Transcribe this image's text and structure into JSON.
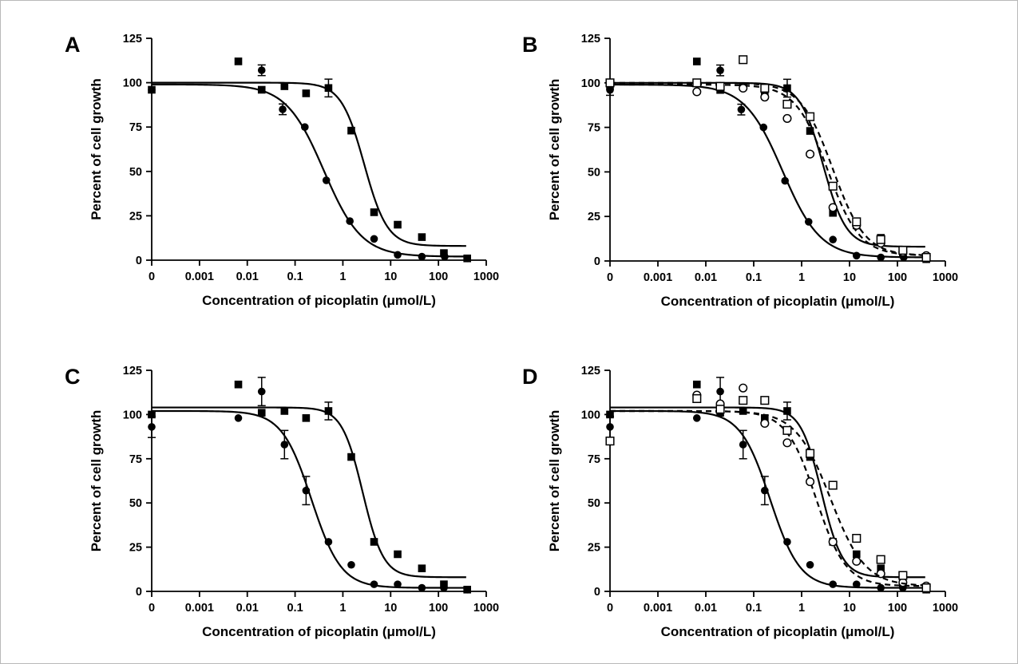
{
  "chart_data": [
    {
      "type": "scatter",
      "panel": "A",
      "xlabel": "Concentration of picoplatin (μmol/L)",
      "ylabel": "Percent of cell growth",
      "xscale": "log",
      "xlim": [
        0.0001,
        1000
      ],
      "ylim": [
        0,
        125
      ],
      "x_tick_labels": [
        "0",
        "0.001",
        "0.01",
        "0.1",
        "1",
        "10",
        "100",
        "1000"
      ],
      "y_tick_labels": [
        "0",
        "25",
        "50",
        "75",
        "100",
        "125"
      ],
      "grid": false,
      "legend": "none",
      "series": [
        {
          "marker": "filled-circle",
          "line": "solid",
          "x": [
            0.0001,
            0.02,
            0.055,
            0.16,
            0.45,
            1.4,
            4.5,
            14,
            45,
            135,
            400
          ],
          "y": [
            96,
            107,
            85,
            75,
            45,
            22,
            12,
            3,
            2,
            2,
            1
          ],
          "err": [
            0,
            3,
            3,
            0,
            0,
            0,
            0,
            0,
            0,
            0,
            0
          ],
          "fit": {
            "top": 99,
            "bottom": 2,
            "ec50": 0.4,
            "hill": 1.1
          }
        },
        {
          "marker": "filled-square",
          "line": "solid",
          "x": [
            0.0001,
            0.0065,
            0.02,
            0.06,
            0.17,
            0.5,
            1.5,
            4.5,
            14,
            45,
            130,
            400
          ],
          "y": [
            96,
            112,
            96,
            98,
            94,
            97,
            73,
            27,
            20,
            13,
            4,
            1
          ],
          "err": [
            0,
            0,
            0,
            0,
            0,
            5,
            0,
            0,
            0,
            0,
            0,
            0
          ],
          "fit": {
            "top": 100,
            "bottom": 8,
            "ec50": 2.8,
            "hill": 1.8
          }
        }
      ]
    },
    {
      "type": "scatter",
      "panel": "B",
      "xlabel": "Concentration of picoplatin (μmol/L)",
      "ylabel": "Percent of cell growth",
      "xscale": "log",
      "xlim": [
        0.0001,
        1000
      ],
      "ylim": [
        0,
        125
      ],
      "x_tick_labels": [
        "0",
        "0.001",
        "0.01",
        "0.1",
        "1",
        "10",
        "100",
        "1000"
      ],
      "y_tick_labels": [
        "0",
        "25",
        "50",
        "75",
        "100",
        "125"
      ],
      "grid": false,
      "legend": "none",
      "series": [
        {
          "marker": "filled-circle",
          "line": "solid",
          "x": [
            0.0001,
            0.02,
            0.055,
            0.16,
            0.45,
            1.4,
            4.5,
            14,
            45,
            135,
            400
          ],
          "y": [
            96,
            107,
            85,
            75,
            45,
            22,
            12,
            3,
            2,
            2,
            1
          ],
          "err": [
            3,
            3,
            3,
            0,
            0,
            0,
            0,
            0,
            0,
            0,
            0
          ],
          "fit": {
            "top": 99,
            "bottom": 2,
            "ec50": 0.4,
            "hill": 1.1
          }
        },
        {
          "marker": "filled-square",
          "line": "solid",
          "x": [
            0.0001,
            0.0065,
            0.02,
            0.06,
            0.17,
            0.5,
            1.5,
            4.5,
            14,
            45,
            130,
            400
          ],
          "y": [
            98,
            112,
            96,
            98,
            94,
            97,
            73,
            27,
            20,
            13,
            4,
            1
          ],
          "err": [
            0,
            0,
            0,
            0,
            0,
            5,
            0,
            0,
            0,
            0,
            0,
            0
          ],
          "fit": {
            "top": 100,
            "bottom": 8,
            "ec50": 2.8,
            "hill": 1.8
          }
        },
        {
          "marker": "open-circle",
          "line": "dashed",
          "x": [
            0.0001,
            0.0065,
            0.02,
            0.06,
            0.17,
            0.5,
            1.5,
            4.5,
            14,
            45,
            130,
            400
          ],
          "y": [
            100,
            95,
            98,
            97,
            92,
            80,
            60,
            30,
            20,
            10,
            5,
            3
          ],
          "err": [
            0,
            0,
            0,
            0,
            0,
            0,
            0,
            0,
            0,
            0,
            0,
            0
          ],
          "fit": {
            "top": 99,
            "bottom": 3,
            "ec50": 3.5,
            "hill": 1.3
          }
        },
        {
          "marker": "open-square",
          "line": "dashed",
          "x": [
            0.0001,
            0.0065,
            0.02,
            0.06,
            0.17,
            0.5,
            1.5,
            4.5,
            14,
            45,
            130,
            400
          ],
          "y": [
            100,
            100,
            98,
            113,
            97,
            88,
            81,
            42,
            22,
            12,
            6,
            2
          ],
          "err": [
            0,
            0,
            0,
            0,
            0,
            0,
            0,
            0,
            0,
            0,
            0,
            0
          ],
          "fit": {
            "top": 100,
            "bottom": 3,
            "ec50": 4.5,
            "hill": 1.3
          }
        }
      ]
    },
    {
      "type": "scatter",
      "panel": "C",
      "xlabel": "Concentration of picoplatin (μmol/L)",
      "ylabel": "Percent of cell growth",
      "xscale": "log",
      "xlim": [
        0.0001,
        1000
      ],
      "ylim": [
        0,
        125
      ],
      "x_tick_labels": [
        "0",
        "0.001",
        "0.01",
        "0.1",
        "1",
        "10",
        "100",
        "1000"
      ],
      "y_tick_labels": [
        "0",
        "25",
        "50",
        "75",
        "100",
        "125"
      ],
      "grid": false,
      "legend": "none",
      "series": [
        {
          "marker": "filled-circle",
          "line": "solid",
          "x": [
            0.0001,
            0.0065,
            0.02,
            0.06,
            0.17,
            0.5,
            1.5,
            4.5,
            14,
            45,
            130,
            400
          ],
          "y": [
            93,
            98,
            113,
            83,
            57,
            28,
            15,
            4,
            4,
            2,
            2,
            1
          ],
          "err": [
            6,
            0,
            8,
            8,
            8,
            0,
            0,
            0,
            0,
            0,
            0,
            0
          ],
          "fit": {
            "top": 102,
            "bottom": 2,
            "ec50": 0.22,
            "hill": 1.4
          }
        },
        {
          "marker": "filled-square",
          "line": "solid",
          "x": [
            0.0001,
            0.0065,
            0.02,
            0.06,
            0.17,
            0.5,
            1.5,
            4.5,
            14,
            45,
            130,
            400
          ],
          "y": [
            100,
            117,
            101,
            102,
            98,
            102,
            76,
            28,
            21,
            13,
            4,
            1
          ],
          "err": [
            0,
            0,
            0,
            0,
            0,
            5,
            0,
            0,
            0,
            0,
            0,
            0
          ],
          "fit": {
            "top": 104,
            "bottom": 8,
            "ec50": 2.6,
            "hill": 2.0
          }
        }
      ]
    },
    {
      "type": "scatter",
      "panel": "D",
      "xlabel": "Concentration of picoplatin (μmol/L)",
      "ylabel": "Percent of cell growth",
      "xscale": "log",
      "xlim": [
        0.0001,
        1000
      ],
      "ylim": [
        0,
        125
      ],
      "x_tick_labels": [
        "0",
        "0.001",
        "0.01",
        "0.1",
        "1",
        "10",
        "100",
        "1000"
      ],
      "y_tick_labels": [
        "0",
        "25",
        "50",
        "75",
        "100",
        "125"
      ],
      "grid": false,
      "legend": "none",
      "series": [
        {
          "marker": "filled-circle",
          "line": "solid",
          "x": [
            0.0001,
            0.0065,
            0.02,
            0.06,
            0.17,
            0.5,
            1.5,
            4.5,
            14,
            45,
            130,
            400
          ],
          "y": [
            93,
            98,
            113,
            83,
            57,
            28,
            15,
            4,
            4,
            2,
            2,
            1
          ],
          "err": [
            6,
            0,
            8,
            8,
            8,
            0,
            0,
            0,
            0,
            0,
            0,
            0
          ],
          "fit": {
            "top": 102,
            "bottom": 2,
            "ec50": 0.22,
            "hill": 1.4
          }
        },
        {
          "marker": "filled-square",
          "line": "solid",
          "x": [
            0.0001,
            0.0065,
            0.02,
            0.06,
            0.17,
            0.5,
            1.5,
            4.5,
            14,
            45,
            130,
            400
          ],
          "y": [
            100,
            117,
            101,
            102,
            98,
            102,
            76,
            28,
            21,
            13,
            4,
            1
          ],
          "err": [
            0,
            0,
            0,
            0,
            0,
            5,
            0,
            0,
            0,
            0,
            0,
            0
          ],
          "fit": {
            "top": 104,
            "bottom": 8,
            "ec50": 2.6,
            "hill": 2.0
          }
        },
        {
          "marker": "open-circle",
          "line": "dashed",
          "x": [
            0.0001,
            0.0065,
            0.02,
            0.06,
            0.17,
            0.5,
            1.5,
            4.5,
            14,
            45,
            130,
            400
          ],
          "y": [
            85,
            111,
            106,
            115,
            95,
            84,
            62,
            28,
            17,
            10,
            5,
            3
          ],
          "err": [
            0,
            0,
            0,
            0,
            0,
            0,
            0,
            0,
            0,
            0,
            0,
            0
          ],
          "fit": {
            "top": 102,
            "bottom": 3,
            "ec50": 2.0,
            "hill": 1.4
          }
        },
        {
          "marker": "open-square",
          "line": "dashed",
          "x": [
            0.0001,
            0.0065,
            0.02,
            0.06,
            0.17,
            0.5,
            1.5,
            4.5,
            14,
            45,
            130,
            400
          ],
          "y": [
            85,
            109,
            103,
            108,
            108,
            91,
            78,
            60,
            30,
            18,
            9,
            2
          ],
          "err": [
            0,
            0,
            0,
            0,
            0,
            0,
            0,
            0,
            0,
            0,
            0,
            0
          ],
          "fit": {
            "top": 102,
            "bottom": 3,
            "ec50": 4.0,
            "hill": 1.2
          }
        }
      ]
    }
  ]
}
